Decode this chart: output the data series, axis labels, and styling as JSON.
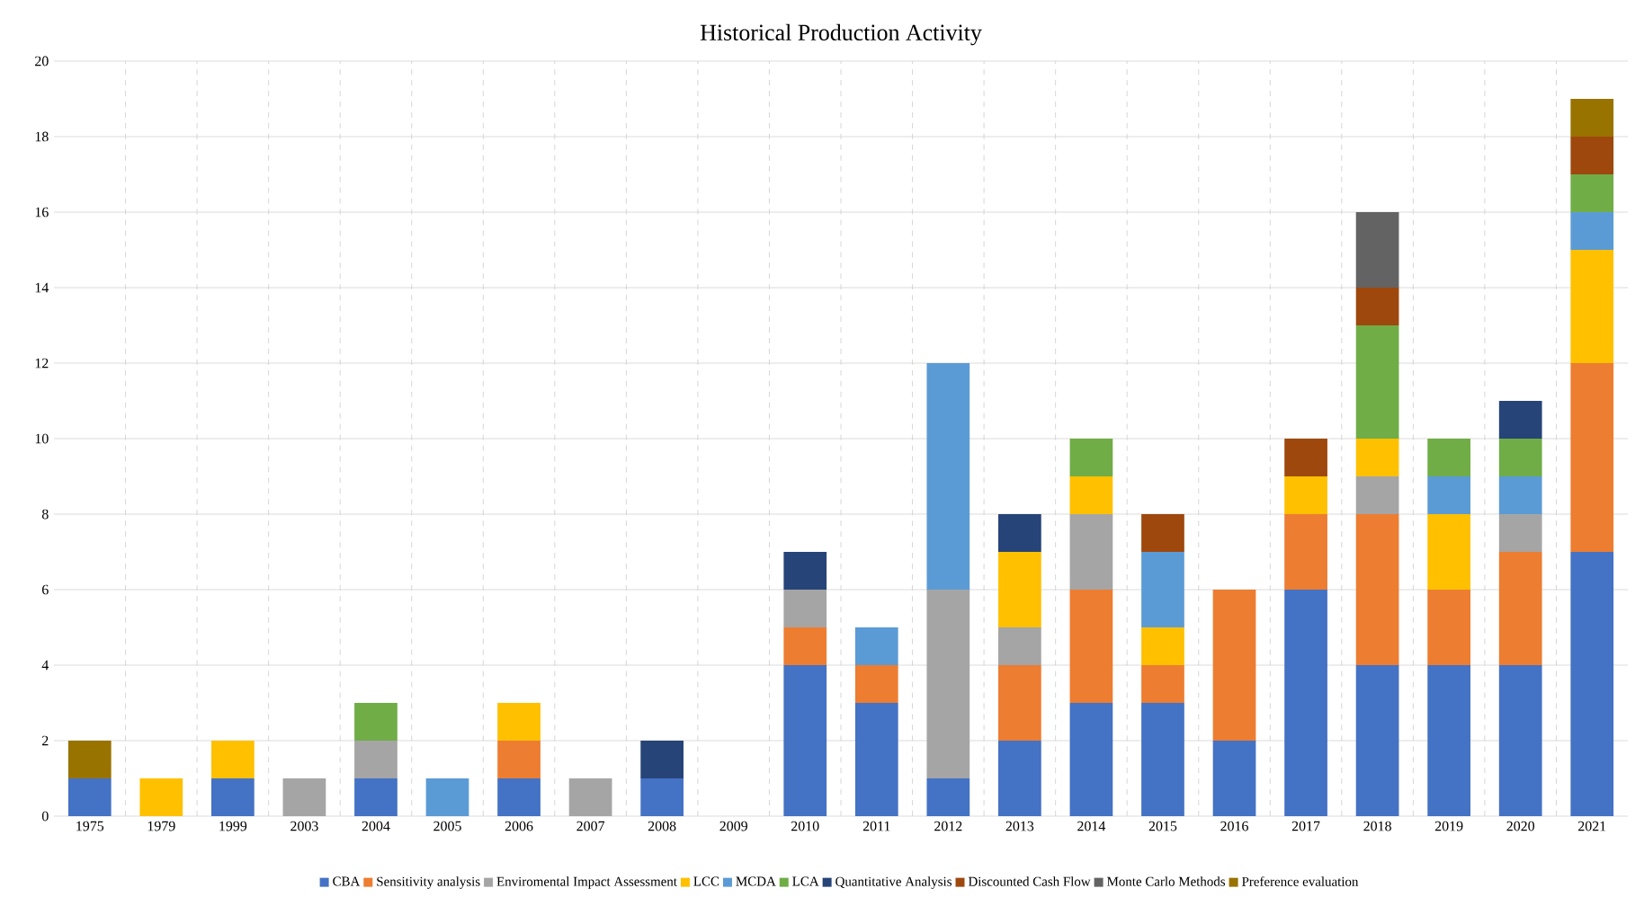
{
  "chart_data": {
    "type": "bar",
    "title": "Historical Production Activity",
    "stacked": true,
    "categories": [
      "1975",
      "1979",
      "1999",
      "2003",
      "2004",
      "2005",
      "2006",
      "2007",
      "2008",
      "2009",
      "2010",
      "2011",
      "2012",
      "2013",
      "2014",
      "2015",
      "2016",
      "2017",
      "2018",
      "2019",
      "2020",
      "2021"
    ],
    "series": [
      {
        "name": "CBA",
        "color": "#4472c4",
        "values": [
          1,
          null,
          1,
          null,
          1,
          null,
          1,
          null,
          1,
          null,
          4,
          3,
          1,
          2,
          3,
          3,
          2,
          6,
          4,
          4,
          4,
          7
        ]
      },
      {
        "name": "Sensitivity analysis",
        "color": "#ed7d31",
        "values": [
          null,
          null,
          null,
          null,
          null,
          null,
          1,
          null,
          null,
          null,
          1,
          1,
          null,
          2,
          3,
          1,
          4,
          2,
          4,
          2,
          3,
          5
        ]
      },
      {
        "name": "Enviromental Impact Assessment",
        "color": "#a5a5a5",
        "values": [
          null,
          null,
          null,
          1,
          1,
          null,
          null,
          1,
          null,
          null,
          1,
          null,
          5,
          1,
          2,
          null,
          null,
          null,
          1,
          null,
          1,
          null
        ]
      },
      {
        "name": "LCC",
        "color": "#ffc000",
        "values": [
          null,
          1,
          1,
          null,
          null,
          null,
          1,
          null,
          null,
          null,
          null,
          null,
          null,
          2,
          1,
          1,
          null,
          1,
          1,
          2,
          null,
          3
        ]
      },
      {
        "name": "MCDA",
        "color": "#5b9bd5",
        "values": [
          null,
          null,
          null,
          null,
          null,
          1,
          null,
          null,
          null,
          null,
          null,
          1,
          6,
          null,
          null,
          2,
          null,
          null,
          null,
          1,
          1,
          1
        ]
      },
      {
        "name": "LCA",
        "color": "#70ad47",
        "values": [
          null,
          null,
          null,
          null,
          1,
          null,
          null,
          null,
          null,
          null,
          null,
          null,
          null,
          null,
          1,
          null,
          null,
          null,
          3,
          1,
          1,
          1
        ]
      },
      {
        "name": "Quantitative Analysis",
        "color": "#264478",
        "values": [
          null,
          null,
          null,
          null,
          null,
          null,
          null,
          null,
          1,
          null,
          1,
          null,
          null,
          1,
          null,
          null,
          null,
          null,
          null,
          null,
          1,
          null
        ]
      },
      {
        "name": "Discounted Cash Flow",
        "color": "#9e480e",
        "values": [
          null,
          null,
          null,
          null,
          null,
          null,
          null,
          null,
          null,
          null,
          null,
          null,
          null,
          null,
          null,
          1,
          null,
          1,
          1,
          null,
          null,
          1
        ]
      },
      {
        "name": "Monte Carlo Methods",
        "color": "#636363",
        "values": [
          null,
          null,
          null,
          null,
          null,
          null,
          null,
          null,
          null,
          null,
          null,
          null,
          null,
          null,
          null,
          null,
          null,
          null,
          2,
          null,
          null,
          null
        ]
      },
      {
        "name": "Preference evaluation",
        "color": "#997300",
        "values": [
          1,
          null,
          null,
          null,
          null,
          null,
          null,
          null,
          null,
          null,
          null,
          null,
          null,
          null,
          null,
          null,
          null,
          null,
          null,
          null,
          null,
          1
        ]
      }
    ],
    "ylim": [
      0,
      20
    ],
    "yticks": [
      0,
      2,
      4,
      6,
      8,
      10,
      12,
      14,
      16,
      18,
      20
    ],
    "grid": true,
    "legend": "bottom"
  }
}
